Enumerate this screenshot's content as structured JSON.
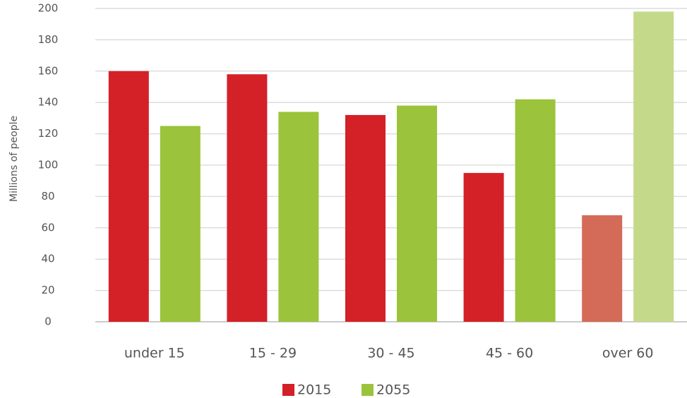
{
  "chart_data": {
    "type": "bar",
    "y_label": "Millions of people",
    "categories": [
      "under 15",
      "15 - 29",
      "30 - 45",
      "45 - 60",
      "over 60"
    ],
    "series": [
      {
        "name": "2015",
        "color": "#d42027",
        "colors": [
          "#d42027",
          "#d42027",
          "#d42027",
          "#d42027",
          "#d46a58"
        ],
        "values": [
          160,
          158,
          132,
          95,
          68
        ]
      },
      {
        "name": "2055",
        "color": "#9bc33b",
        "colors": [
          "#9bc33b",
          "#9bc33b",
          "#9bc33b",
          "#9bc33b",
          "#c5d98a"
        ],
        "values": [
          125,
          134,
          138,
          142,
          198
        ]
      }
    ],
    "ylim": [
      0,
      200
    ],
    "yticks": [
      0,
      20,
      40,
      60,
      80,
      100,
      120,
      140,
      160,
      180,
      200
    ],
    "grid": true,
    "legend": "bottom"
  }
}
